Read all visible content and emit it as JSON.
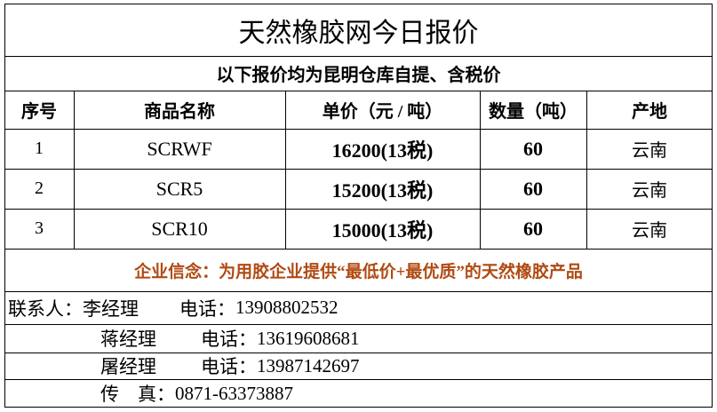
{
  "title": "天然橡胶网今日报价",
  "subtitle": "以下报价均为昆明仓库自提、含税价",
  "table": {
    "headers": [
      "序号",
      "商品名称",
      "单价（元 / 吨）",
      "数量（吨）",
      "产地"
    ],
    "rows": [
      {
        "no": "1",
        "name": "SCRWF",
        "price": "16200(13税)",
        "qty": "60",
        "origin": "云南"
      },
      {
        "no": "2",
        "name": "SCR5",
        "price": "15200(13税)",
        "qty": "60",
        "origin": "云南"
      },
      {
        "no": "3",
        "name": "SCR10",
        "price": "15000(13税)",
        "qty": "60",
        "origin": "云南"
      }
    ]
  },
  "slogan": "企业信念：为用胶企业提供“最低价+最优质”的天然橡胶产品",
  "slogan_color": "#b04a12",
  "contacts": {
    "label": "联系人：",
    "people": [
      {
        "name": "李经理",
        "phone_label": "电话：",
        "phone": "13908802532"
      },
      {
        "name": "蒋经理",
        "phone_label": "电话：",
        "phone": "13619608681"
      },
      {
        "name": "屠经理",
        "phone_label": "电话：",
        "phone": "13987142697"
      }
    ],
    "fax_label": "传　真：",
    "fax": "0871-63373887"
  }
}
